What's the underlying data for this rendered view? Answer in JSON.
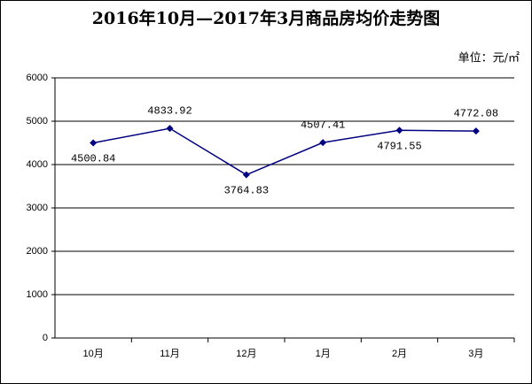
{
  "chart_data": {
    "type": "line",
    "title": "2016年10月—2017年3月商品房均价走势图",
    "unit_label": "单位：元/㎡",
    "categories": [
      "10月",
      "11月",
      "12月",
      "1月",
      "2月",
      "3月"
    ],
    "series": [
      {
        "name": "均价",
        "color": "#000080",
        "values": [
          4500.84,
          4833.92,
          3764.83,
          4507.41,
          4791.55,
          4772.08
        ]
      }
    ],
    "ylim": [
      0,
      6000
    ],
    "yticks": [
      0,
      1000,
      2000,
      3000,
      4000,
      5000,
      6000
    ],
    "grid": true
  }
}
